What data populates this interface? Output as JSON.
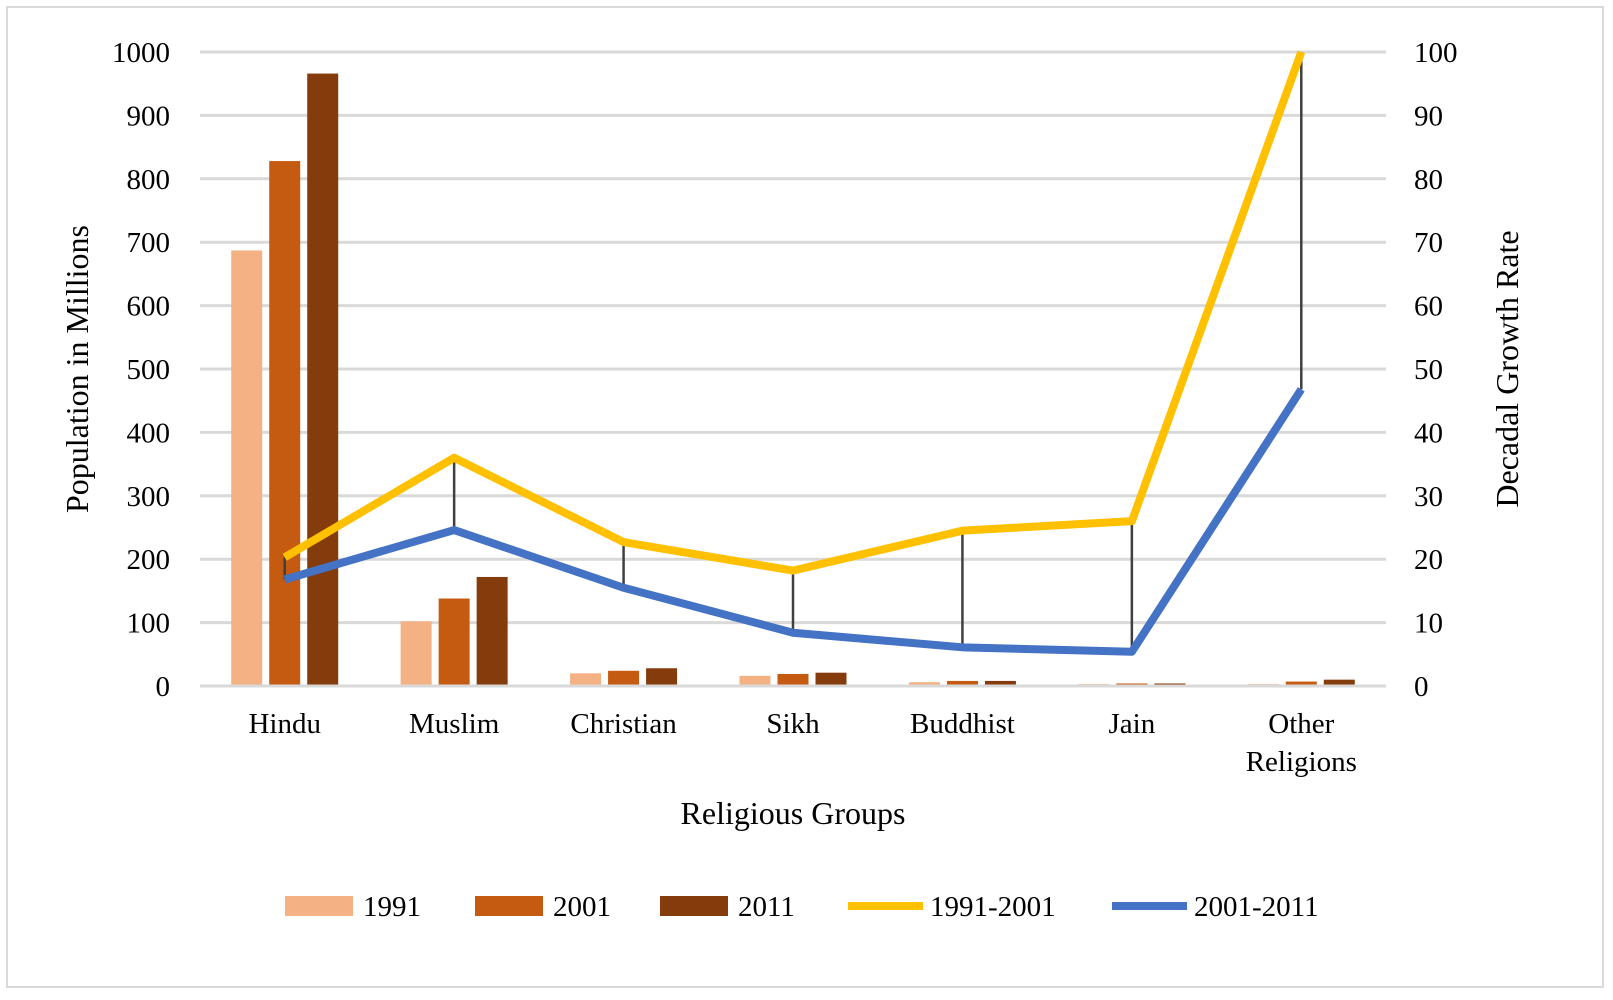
{
  "chart_data": {
    "type": "bar+line",
    "categories": [
      "Hindu",
      "Muslim",
      "Christian",
      "Sikh",
      "Buddhist",
      "Jain",
      "Other Religions"
    ],
    "xlabel": "Religious Groups",
    "ylabel": "Population in Millions",
    "y2label": "Decadal Growth Rate",
    "ylim": [
      0,
      1000
    ],
    "y2lim": [
      0,
      100
    ],
    "yticks": [
      0,
      100,
      200,
      300,
      400,
      500,
      600,
      700,
      800,
      900,
      1000
    ],
    "y2ticks": [
      0,
      10,
      20,
      30,
      40,
      50,
      60,
      70,
      80,
      90,
      100
    ],
    "grid": true,
    "legend_position": "bottom",
    "bar_series": [
      {
        "name": "1991",
        "color": "#f4b183",
        "values": [
          687,
          102,
          20,
          16,
          6,
          3,
          3
        ]
      },
      {
        "name": "2001",
        "color": "#c55a11",
        "values": [
          828,
          138,
          24,
          19,
          8,
          4,
          7
        ]
      },
      {
        "name": "2011",
        "color": "#843c0c",
        "values": [
          966,
          172,
          28,
          21,
          8,
          4,
          10
        ]
      }
    ],
    "line_series": [
      {
        "name": "1991-2001",
        "color": "#ffc000",
        "axis": "right",
        "values": [
          20.3,
          36.0,
          22.7,
          18.2,
          24.5,
          26.0,
          100
        ]
      },
      {
        "name": "2001-2011",
        "color": "#4472c4",
        "axis": "right",
        "values": [
          16.8,
          24.6,
          15.5,
          8.4,
          6.1,
          5.4,
          46.8
        ]
      }
    ],
    "high_low_lines": true
  }
}
